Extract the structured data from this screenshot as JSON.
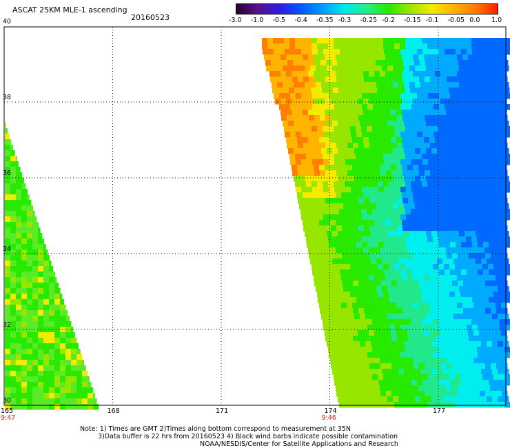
{
  "header": {
    "title": "ASCAT 25KM MLE-1 ascending",
    "date": "20160523"
  },
  "colorbar": {
    "labels": [
      "-3.0",
      "-1.0",
      "-0.5",
      "-0.4",
      "-0.35",
      "-0.3",
      "-0.25",
      "-0.2",
      "-0.15",
      "-0.1",
      "-0.05",
      "0.0",
      "1.0"
    ],
    "colors": [
      "#2a0033",
      "#5a0f8c",
      "#2d1de0",
      "#005aff",
      "#00a0ff",
      "#00eaea",
      "#22ee88",
      "#28ea00",
      "#9de600",
      "#f6ea00",
      "#ffb000",
      "#ff7a00",
      "#ff1e00"
    ]
  },
  "axes": {
    "lon_ticks": [
      "165",
      "168",
      "171",
      "174",
      "177"
    ],
    "lat_ticks": [
      "40",
      "38",
      "36",
      "34",
      "32",
      "30"
    ],
    "time_labels": [
      {
        "text": "9:47",
        "at_lon": "165"
      },
      {
        "text": "9:46",
        "at_lon": "174"
      }
    ],
    "time_color": "#c8281e"
  },
  "notes": {
    "line1": "Note: 1) Times are GMT 2)Times along bottom correspond to measurement at 35N",
    "line2": "3)Data buffer is 22 hrs from 20160523 4) Black wind barbs indicate possible contamination",
    "line3": "NOAA/NESDIS/Center for Satellite Applications and Research"
  }
}
